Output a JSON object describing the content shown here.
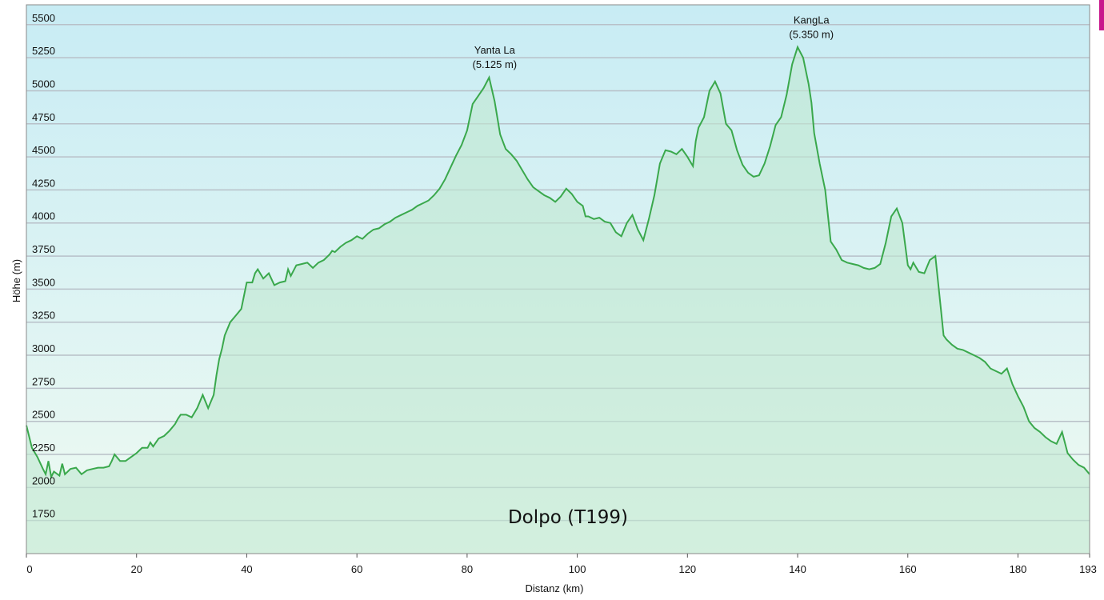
{
  "colors": {
    "background_top": "#c8ecf4",
    "background_bottom": "#effaf2",
    "line": "#3aa84c",
    "fill": "#bfe8d0",
    "grid": "#b8c0c8",
    "accent": "#c8168c"
  },
  "chart_data": {
    "type": "area",
    "title": "Dolpo (T199)",
    "xlabel": "Distanz  (km)",
    "ylabel": "Höhe (m)",
    "xlim": [
      0,
      193
    ],
    "ylim": [
      1500,
      5650
    ],
    "x_ticks": [
      "0",
      "20",
      "40",
      "60",
      "80",
      "100",
      "120",
      "140",
      "160",
      "180",
      "193"
    ],
    "y_ticks": [
      "1750",
      "2000",
      "2250",
      "2500",
      "2750",
      "3000",
      "3250",
      "3500",
      "3750",
      "4000",
      "4250",
      "4500",
      "4750",
      "5000",
      "5250",
      "5500"
    ],
    "grid": true,
    "annotations": [
      {
        "name": "Yanta La",
        "label": "(5.125 m)",
        "x": 85,
        "y": 5125
      },
      {
        "name": "KangLa",
        "label": "(5.350 m)",
        "x": 142.5,
        "y": 5350
      }
    ],
    "series": [
      {
        "x": [
          0,
          1,
          2,
          3,
          3.5,
          4,
          4.5,
          5,
          6,
          6.5,
          7,
          8,
          9,
          10,
          11,
          12,
          13,
          14,
          15,
          15.5,
          16,
          17,
          18,
          19,
          20,
          21,
          22,
          22.5,
          23,
          24,
          25,
          26,
          27,
          27.5,
          28,
          29,
          30,
          31,
          32,
          33,
          34,
          34.5,
          35,
          35.5,
          36,
          37,
          38,
          39,
          40,
          41,
          41.5,
          42,
          43,
          44,
          45,
          46,
          47,
          47.5,
          48,
          49,
          50,
          51,
          52,
          53,
          54,
          55,
          55.5,
          56,
          57,
          58,
          59,
          60,
          61,
          62,
          63,
          64,
          65,
          66,
          67,
          68,
          69,
          70,
          71,
          72,
          73,
          74,
          75,
          76,
          77,
          78,
          79,
          80,
          81,
          82,
          83,
          84,
          85,
          86,
          87,
          88,
          89,
          90,
          91,
          92,
          93,
          94,
          95,
          96,
          97,
          98,
          99,
          100,
          101,
          101.5,
          102,
          103,
          104,
          105,
          106,
          107,
          108,
          109,
          110,
          111,
          112,
          113,
          114,
          115,
          116,
          117,
          118,
          119,
          120,
          121,
          121.5,
          122,
          123,
          124,
          125,
          126,
          127,
          128,
          129,
          130,
          131,
          132,
          133,
          134,
          135,
          136,
          137,
          138,
          139,
          140,
          141,
          142,
          142.5,
          143,
          144,
          145,
          146,
          147,
          148,
          149,
          150,
          151,
          152,
          153,
          154,
          155,
          156,
          157,
          158,
          159,
          160,
          160.5,
          161,
          162,
          163,
          164,
          165,
          166,
          166.5,
          167,
          168,
          169,
          170,
          171,
          172,
          173,
          174,
          175,
          176,
          177,
          178,
          179,
          180,
          181,
          182,
          183,
          184,
          185,
          186,
          187,
          188,
          189,
          190,
          191,
          192,
          193
        ],
        "values": [
          2470,
          2300,
          2230,
          2140,
          2100,
          2200,
          2080,
          2120,
          2090,
          2180,
          2100,
          2140,
          2150,
          2100,
          2130,
          2140,
          2150,
          2150,
          2160,
          2200,
          2250,
          2200,
          2200,
          2230,
          2260,
          2300,
          2300,
          2340,
          2310,
          2370,
          2390,
          2430,
          2480,
          2520,
          2550,
          2550,
          2530,
          2600,
          2700,
          2600,
          2700,
          2850,
          2970,
          3050,
          3150,
          3250,
          3300,
          3350,
          3550,
          3550,
          3620,
          3650,
          3580,
          3620,
          3530,
          3550,
          3560,
          3650,
          3600,
          3680,
          3690,
          3700,
          3660,
          3700,
          3720,
          3760,
          3790,
          3780,
          3820,
          3850,
          3870,
          3900,
          3880,
          3920,
          3950,
          3960,
          3990,
          4010,
          4040,
          4060,
          4080,
          4100,
          4130,
          4150,
          4170,
          4210,
          4260,
          4330,
          4420,
          4510,
          4590,
          4700,
          4900,
          4960,
          5020,
          5100,
          4920,
          4670,
          4560,
          4520,
          4470,
          4400,
          4330,
          4270,
          4240,
          4210,
          4190,
          4160,
          4200,
          4260,
          4220,
          4160,
          4130,
          4050,
          4050,
          4030,
          4040,
          4010,
          4000,
          3930,
          3900,
          4000,
          4060,
          3950,
          3870,
          4030,
          4210,
          4450,
          4550,
          4540,
          4520,
          4560,
          4500,
          4430,
          4620,
          4720,
          4800,
          5000,
          5070,
          4980,
          4750,
          4700,
          4550,
          4440,
          4380,
          4350,
          4360,
          4450,
          4580,
          4740,
          4800,
          4970,
          5200,
          5330,
          5250,
          5050,
          4910,
          4680,
          4450,
          4250,
          3860,
          3800,
          3720,
          3700,
          3690,
          3680,
          3660,
          3650,
          3660,
          3690,
          3850,
          4050,
          4110,
          4000,
          3680,
          3650,
          3700,
          3630,
          3620,
          3720,
          3750,
          3350,
          3150,
          3120,
          3080,
          3050,
          3040,
          3020,
          3000,
          2980,
          2950,
          2900,
          2880,
          2860,
          2900,
          2780,
          2690,
          2610,
          2500,
          2450,
          2420,
          2380,
          2350,
          2330,
          2420,
          2260,
          2210,
          2170,
          2150,
          2100
        ]
      }
    ]
  }
}
